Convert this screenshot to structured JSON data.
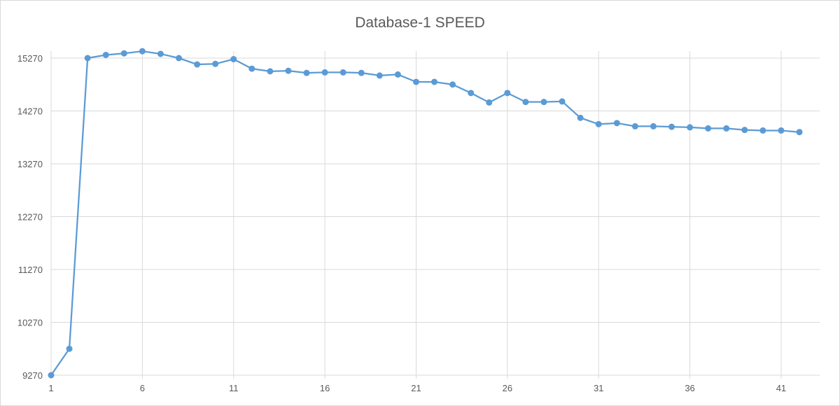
{
  "chart_data": {
    "type": "line",
    "title": "Database-1 SPEED",
    "xlabel": "",
    "ylabel": "",
    "ylim": [
      9270,
      15270
    ],
    "xlim": [
      1,
      42
    ],
    "x_ticks": [
      "1",
      "6",
      "11",
      "16",
      "21",
      "26",
      "31",
      "36",
      "41"
    ],
    "y_ticks": [
      "9270",
      "10270",
      "11270",
      "12270",
      "13270",
      "14270",
      "15270"
    ],
    "grid": true,
    "legend": "none",
    "series": [
      {
        "color": "#5b9bd5",
        "x": [
          1,
          2,
          3,
          4,
          5,
          6,
          7,
          8,
          9,
          10,
          11,
          12,
          13,
          14,
          15,
          16,
          17,
          18,
          19,
          20,
          21,
          22,
          23,
          24,
          25,
          26,
          27,
          28,
          29,
          30,
          31,
          32,
          33,
          34,
          35,
          36,
          37,
          38,
          39,
          40,
          41,
          42
        ],
        "values": [
          9270,
          9770,
          15270,
          15330,
          15360,
          15400,
          15350,
          15270,
          15150,
          15160,
          15250,
          15070,
          15020,
          15030,
          14990,
          15000,
          15000,
          14990,
          14940,
          14960,
          14820,
          14820,
          14770,
          14610,
          14430,
          14610,
          14440,
          14440,
          14450,
          14140,
          14020,
          14040,
          13980,
          13980,
          13970,
          13960,
          13940,
          13940,
          13910,
          13900,
          13900,
          13870
        ]
      }
    ]
  }
}
